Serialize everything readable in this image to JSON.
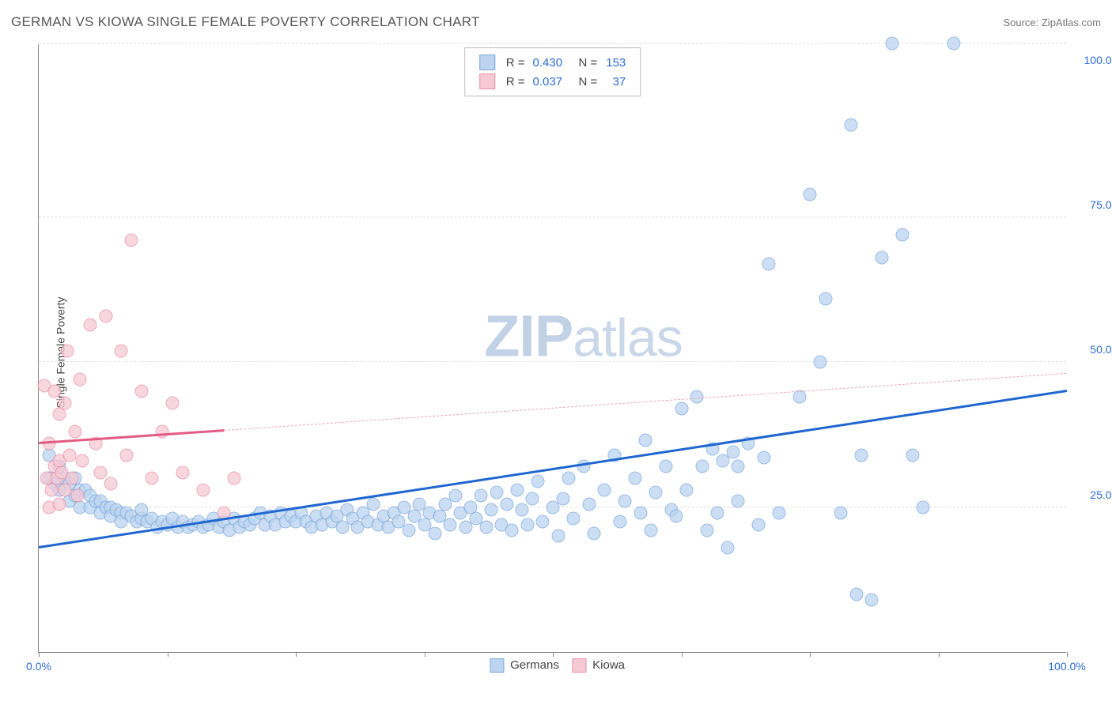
{
  "header": {
    "title": "GERMAN VS KIOWA SINGLE FEMALE POVERTY CORRELATION CHART",
    "source": "Source: ZipAtlas.com"
  },
  "chart": {
    "type": "scatter",
    "ylabel": "Single Female Poverty",
    "xlim": [
      0,
      100
    ],
    "ylim": [
      0,
      105
    ],
    "x_ticks": [
      0,
      12.5,
      25,
      37.5,
      50,
      62.5,
      75,
      87.5,
      100
    ],
    "x_tick_labels": {
      "0": "0.0%",
      "100": "100.0%"
    },
    "y_gridlines": [
      25,
      50,
      75,
      105
    ],
    "y_tick_labels": {
      "25": "25.0%",
      "50": "50.0%",
      "75": "75.0%",
      "100": "100.0%"
    },
    "background_color": "#ffffff",
    "grid_color": "#dddddd",
    "axis_color": "#888888",
    "tick_label_color": "#2b6cd4",
    "watermark_text_bold": "ZIP",
    "watermark_text_light": "atlas",
    "series": [
      {
        "name": "Germans",
        "color_fill": "#bcd4f0",
        "color_stroke": "#7aa8dc",
        "point_radius": 8.5,
        "point_opacity": 0.75,
        "trend": {
          "x1": 0,
          "y1": 18,
          "x2": 100,
          "y2": 45,
          "color": "#1f66d0",
          "width": 2.5,
          "dash_after_x": null
        },
        "R": "0.430",
        "N": "153",
        "points": [
          [
            1,
            34
          ],
          [
            1,
            30
          ],
          [
            1.5,
            29
          ],
          [
            2,
            32
          ],
          [
            2,
            28
          ],
          [
            2.5,
            30
          ],
          [
            3,
            29
          ],
          [
            3,
            26
          ],
          [
            3.5,
            30
          ],
          [
            3.5,
            27
          ],
          [
            4,
            28
          ],
          [
            4,
            25
          ],
          [
            4.5,
            28
          ],
          [
            5,
            27
          ],
          [
            5,
            25
          ],
          [
            5.5,
            26
          ],
          [
            6,
            26
          ],
          [
            6,
            24
          ],
          [
            6.5,
            25
          ],
          [
            7,
            25
          ],
          [
            7,
            23.5
          ],
          [
            7.5,
            24.5
          ],
          [
            8,
            24
          ],
          [
            8,
            22.5
          ],
          [
            8.5,
            24
          ],
          [
            9,
            23.5
          ],
          [
            9.5,
            22.5
          ],
          [
            10,
            23
          ],
          [
            10,
            24.5
          ],
          [
            10.5,
            22.5
          ],
          [
            11,
            23
          ],
          [
            11.5,
            21.5
          ],
          [
            12,
            22.5
          ],
          [
            12.5,
            22
          ],
          [
            13,
            23
          ],
          [
            13.5,
            21.5
          ],
          [
            14,
            22.5
          ],
          [
            14.5,
            21.5
          ],
          [
            15,
            22
          ],
          [
            15.5,
            22.5
          ],
          [
            16,
            21.5
          ],
          [
            16.5,
            22
          ],
          [
            17,
            23
          ],
          [
            17.5,
            21.5
          ],
          [
            18,
            22.5
          ],
          [
            18.5,
            21
          ],
          [
            19,
            23
          ],
          [
            19.5,
            21.5
          ],
          [
            20,
            22.5
          ],
          [
            20.5,
            22
          ],
          [
            21,
            23
          ],
          [
            21.5,
            24
          ],
          [
            22,
            22
          ],
          [
            22.5,
            23.5
          ],
          [
            23,
            22
          ],
          [
            23.5,
            24
          ],
          [
            24,
            22.5
          ],
          [
            24.5,
            23.5
          ],
          [
            25,
            22.5
          ],
          [
            25.5,
            24
          ],
          [
            26,
            22.5
          ],
          [
            26.5,
            21.5
          ],
          [
            27,
            23.5
          ],
          [
            27.5,
            22
          ],
          [
            28,
            24
          ],
          [
            28.5,
            22.5
          ],
          [
            29,
            23.5
          ],
          [
            29.5,
            21.5
          ],
          [
            30,
            24.5
          ],
          [
            30.5,
            23
          ],
          [
            31,
            21.5
          ],
          [
            31.5,
            24
          ],
          [
            32,
            22.5
          ],
          [
            32.5,
            25.5
          ],
          [
            33,
            22
          ],
          [
            33.5,
            23.5
          ],
          [
            34,
            21.5
          ],
          [
            34.5,
            24
          ],
          [
            35,
            22.5
          ],
          [
            35.5,
            25
          ],
          [
            36,
            21
          ],
          [
            36.5,
            23.5
          ],
          [
            37,
            25.5
          ],
          [
            37.5,
            22
          ],
          [
            38,
            24
          ],
          [
            38.5,
            20.5
          ],
          [
            39,
            23.5
          ],
          [
            39.5,
            25.5
          ],
          [
            40,
            22
          ],
          [
            40.5,
            27
          ],
          [
            41,
            24
          ],
          [
            41.5,
            21.5
          ],
          [
            42,
            25
          ],
          [
            42.5,
            23
          ],
          [
            43,
            27
          ],
          [
            43.5,
            21.5
          ],
          [
            44,
            24.5
          ],
          [
            44.5,
            27.5
          ],
          [
            45,
            22
          ],
          [
            45.5,
            25.5
          ],
          [
            46,
            21
          ],
          [
            46.5,
            28
          ],
          [
            47,
            24.5
          ],
          [
            47.5,
            22
          ],
          [
            48,
            26.5
          ],
          [
            48.5,
            29.5
          ],
          [
            49,
            22.5
          ],
          [
            50,
            25
          ],
          [
            50.5,
            20
          ],
          [
            51,
            26.5
          ],
          [
            51.5,
            30
          ],
          [
            52,
            23
          ],
          [
            53,
            32
          ],
          [
            53.5,
            25.5
          ],
          [
            54,
            20.5
          ],
          [
            55,
            28
          ],
          [
            56,
            34
          ],
          [
            56.5,
            22.5
          ],
          [
            57,
            26
          ],
          [
            58,
            30
          ],
          [
            58.5,
            24
          ],
          [
            59,
            36.5
          ],
          [
            59.5,
            21
          ],
          [
            60,
            27.5
          ],
          [
            61,
            32
          ],
          [
            61.5,
            24.5
          ],
          [
            62,
            23.5
          ],
          [
            62.5,
            42
          ],
          [
            63,
            28
          ],
          [
            64,
            44
          ],
          [
            64.5,
            32
          ],
          [
            65,
            21
          ],
          [
            65.5,
            35
          ],
          [
            66,
            24
          ],
          [
            66.5,
            33
          ],
          [
            67,
            18
          ],
          [
            67.5,
            34.5
          ],
          [
            68,
            26
          ],
          [
            69,
            36
          ],
          [
            70,
            22
          ],
          [
            70.5,
            33.5
          ],
          [
            71,
            67
          ],
          [
            72,
            24
          ],
          [
            74,
            44
          ],
          [
            75,
            79
          ],
          [
            76,
            50
          ],
          [
            76.5,
            61
          ],
          [
            78,
            24
          ],
          [
            79,
            91
          ],
          [
            79.5,
            10
          ],
          [
            80,
            34
          ],
          [
            81,
            9
          ],
          [
            82,
            68
          ],
          [
            83,
            105
          ],
          [
            84,
            72
          ],
          [
            85,
            34
          ],
          [
            86,
            25
          ],
          [
            89,
            105
          ],
          [
            68,
            32
          ]
        ]
      },
      {
        "name": "Kiowa",
        "color_fill": "#f6c9d4",
        "color_stroke": "#e88fa8",
        "point_radius": 8.5,
        "point_opacity": 0.75,
        "trend": {
          "x1": 0,
          "y1": 36,
          "x2": 100,
          "y2": 48,
          "color": "#e25b82",
          "width": 2.5,
          "dash_after_x": 18,
          "dash_color": "#f0a6ba"
        },
        "R": "0.037",
        "N": "37",
        "points": [
          [
            0.5,
            46
          ],
          [
            0.8,
            30
          ],
          [
            1,
            25
          ],
          [
            1,
            36
          ],
          [
            1.2,
            28
          ],
          [
            1.5,
            45
          ],
          [
            1.5,
            32
          ],
          [
            1.8,
            30
          ],
          [
            2,
            41
          ],
          [
            2,
            33
          ],
          [
            2,
            25.5
          ],
          [
            2.2,
            31
          ],
          [
            2.5,
            43
          ],
          [
            2.5,
            28
          ],
          [
            2.8,
            52
          ],
          [
            3,
            34
          ],
          [
            3.2,
            30
          ],
          [
            3.5,
            38
          ],
          [
            3.8,
            27
          ],
          [
            4,
            47
          ],
          [
            4.2,
            33
          ],
          [
            5,
            56.5
          ],
          [
            5.5,
            36
          ],
          [
            6,
            31
          ],
          [
            6.5,
            58
          ],
          [
            7,
            29
          ],
          [
            8,
            52
          ],
          [
            8.5,
            34
          ],
          [
            9,
            71
          ],
          [
            10,
            45
          ],
          [
            11,
            30
          ],
          [
            12,
            38
          ],
          [
            13,
            43
          ],
          [
            14,
            31
          ],
          [
            16,
            28
          ],
          [
            18,
            24
          ],
          [
            19,
            30
          ]
        ]
      }
    ],
    "legend_top": {
      "label_R": "R =",
      "label_N": "N ="
    },
    "legend_bottom": [
      {
        "label": "Germans",
        "fill": "#bcd4f0",
        "stroke": "#7aa8dc"
      },
      {
        "label": "Kiowa",
        "fill": "#f6c9d4",
        "stroke": "#e88fa8"
      }
    ]
  }
}
